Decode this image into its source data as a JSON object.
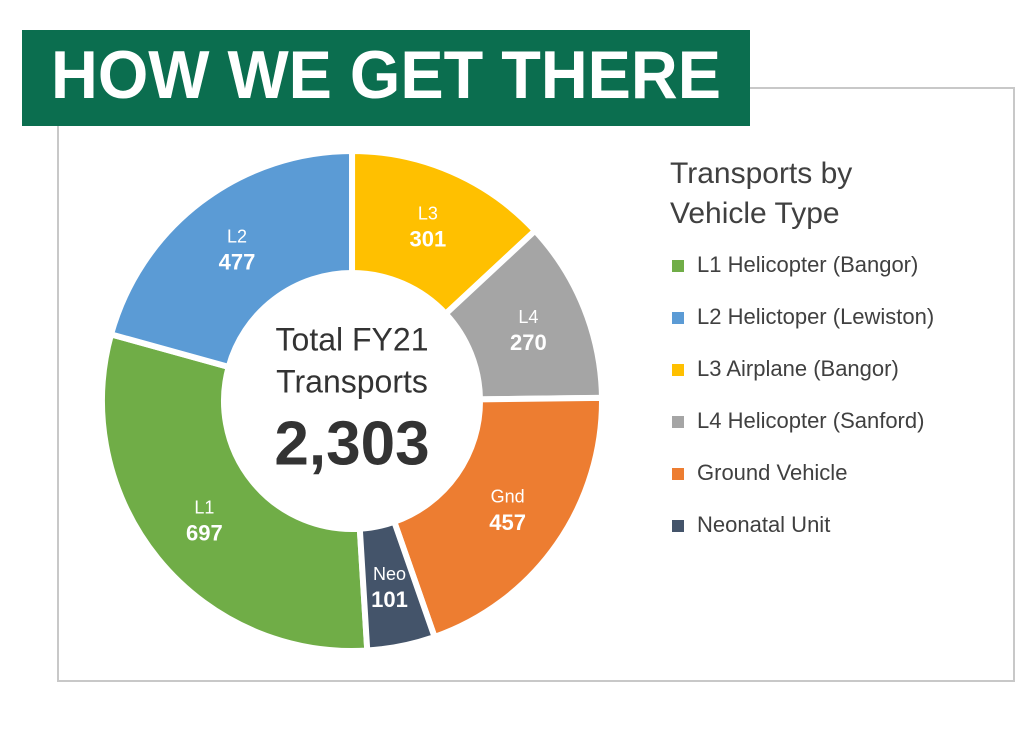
{
  "header": {
    "title": "HOW WE GET THERE"
  },
  "chart_data": {
    "type": "donut",
    "center_title": [
      "Total FY21",
      "Transports"
    ],
    "total": "2,303",
    "legend_title": [
      "Transports by",
      "Vehicle Type"
    ],
    "series": [
      {
        "name": "L1 Helicopter (Bangor)",
        "label": "L1",
        "value": 697,
        "color": "#70ad47"
      },
      {
        "name": "L2 Helictoper (Lewiston)",
        "label": "L2",
        "value": 477,
        "color": "#5b9bd5"
      },
      {
        "name": "L3 Airplane (Bangor)",
        "label": "L3",
        "value": 301,
        "color": "#ffc000"
      },
      {
        "name": "L4 Helicopter (Sanford)",
        "label": "L4",
        "value": 270,
        "color": "#a5a5a5"
      },
      {
        "name": "Ground Vehicle",
        "label": "Gnd",
        "value": 457,
        "color": "#ed7d31"
      },
      {
        "name": "Neonatal Unit",
        "label": "Neo",
        "value": 101,
        "color": "#44546a"
      }
    ]
  }
}
